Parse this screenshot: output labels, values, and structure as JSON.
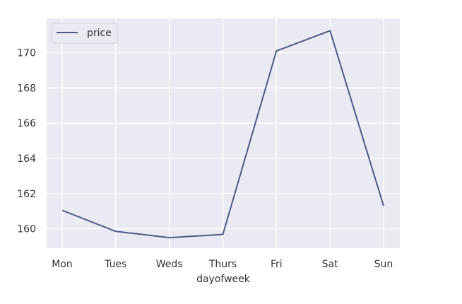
{
  "chart_data": {
    "type": "line",
    "title": "",
    "xlabel": "dayofweek",
    "ylabel": "",
    "categories": [
      "Mon",
      "Tues",
      "Weds",
      "Thurs",
      "Fri",
      "Sat",
      "Sun"
    ],
    "series": [
      {
        "name": "price",
        "values": [
          161.05,
          159.85,
          159.5,
          159.68,
          170.1,
          171.25,
          161.3
        ]
      }
    ],
    "yticks": [
      "160",
      "162",
      "164",
      "166",
      "168",
      "170"
    ],
    "ylim": [
      158.9,
      171.95
    ],
    "grid": true,
    "legend": "top-left",
    "colors": {
      "plot_background": "#EAEAF2",
      "grid": "#FFFFFF",
      "series": "#4C5A85"
    }
  }
}
